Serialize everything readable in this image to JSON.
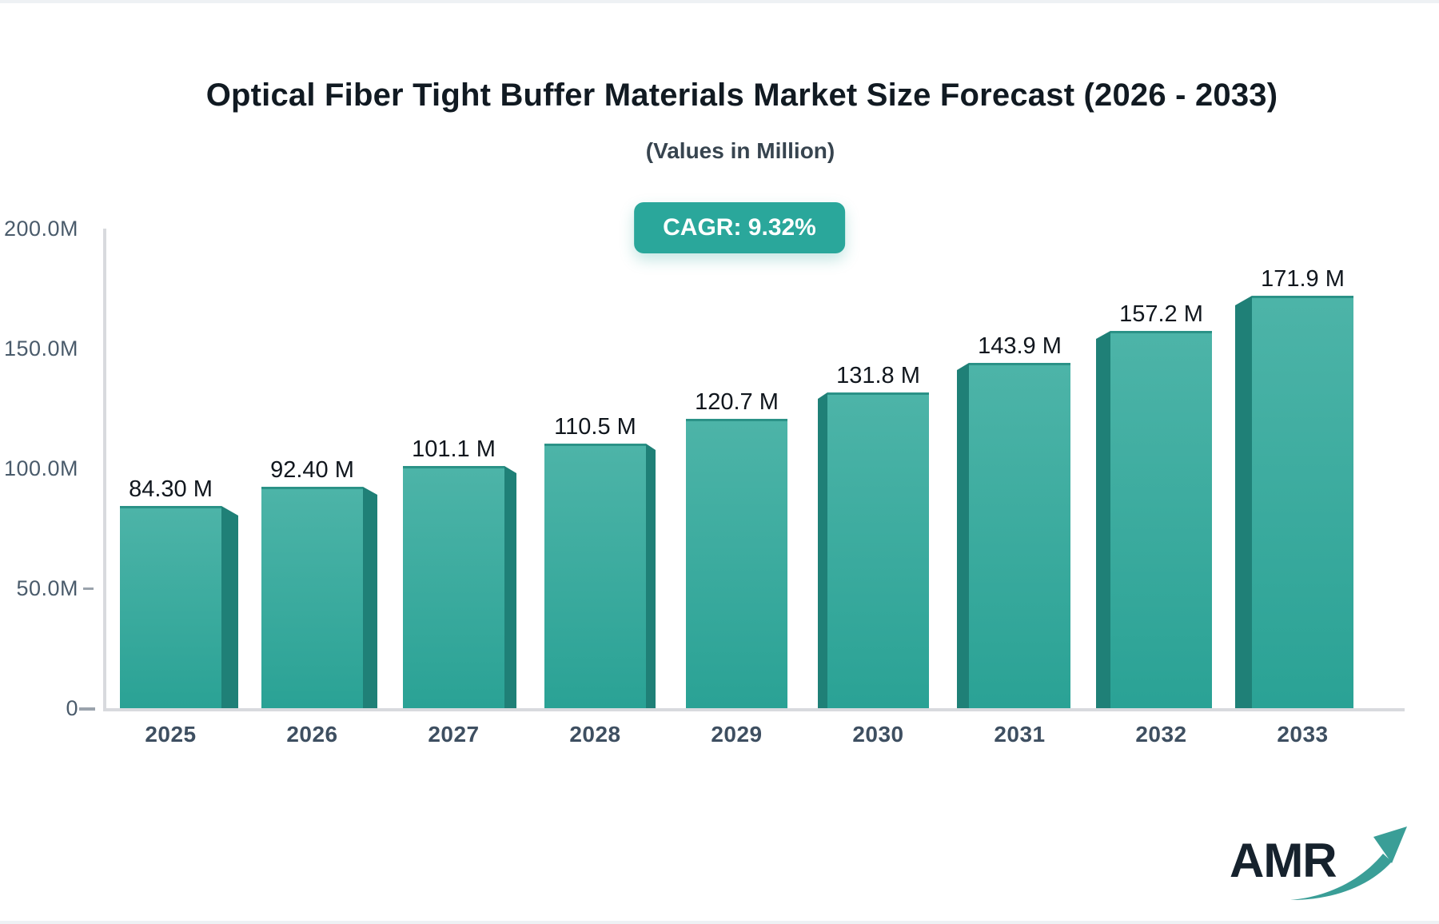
{
  "page": {
    "title": "Optical Fiber Tight Buffer Materials Market Size Forecast (2026 - 2033)",
    "subtitle": "(Values in Million)",
    "cagr_badge": "CAGR: 9.32%"
  },
  "chart_data": {
    "type": "bar",
    "title": "Optical Fiber Tight Buffer Materials Market Size Forecast (2026 - 2033)",
    "subtitle": "(Values in Million)",
    "cagr": "9.32%",
    "categories": [
      "2025",
      "2026",
      "2027",
      "2028",
      "2029",
      "2030",
      "2031",
      "2032",
      "2033"
    ],
    "values": [
      84.3,
      92.4,
      101.1,
      110.5,
      120.7,
      131.8,
      143.9,
      157.2,
      171.9
    ],
    "bar_labels": [
      "84.30 M",
      "92.40 M",
      "101.1 M",
      "110.5 M",
      "120.7 M",
      "131.8 M",
      "143.9 M",
      "157.2 M",
      "171.9 M"
    ],
    "ytick_labels": [
      "200.0M",
      "150.0M",
      "100.0M",
      "50.0M",
      "0"
    ],
    "ytick_values": [
      200,
      150,
      100,
      50,
      0
    ],
    "ylim": [
      0,
      200
    ],
    "xlabel": "",
    "ylabel": "",
    "grid": false,
    "legend": false,
    "style": "3d-perspective-bars"
  },
  "colors": {
    "badge_bg": "#2aa79b",
    "bar_front_top": "#4db4a8",
    "bar_front_bottom": "#2aa295",
    "bar_side": "#1f8077",
    "bar_top_edge": "#2b9287",
    "axis_line": "#d8dade",
    "tick_mark": "#9aa3ac",
    "ytick_text": "#4a5b6b",
    "xtick_text": "#3e4f61",
    "value_text": "#10161d",
    "logo_navy": "#16222d",
    "logo_arrow": "#3a9e97"
  },
  "logo": {
    "text": "AMR"
  }
}
